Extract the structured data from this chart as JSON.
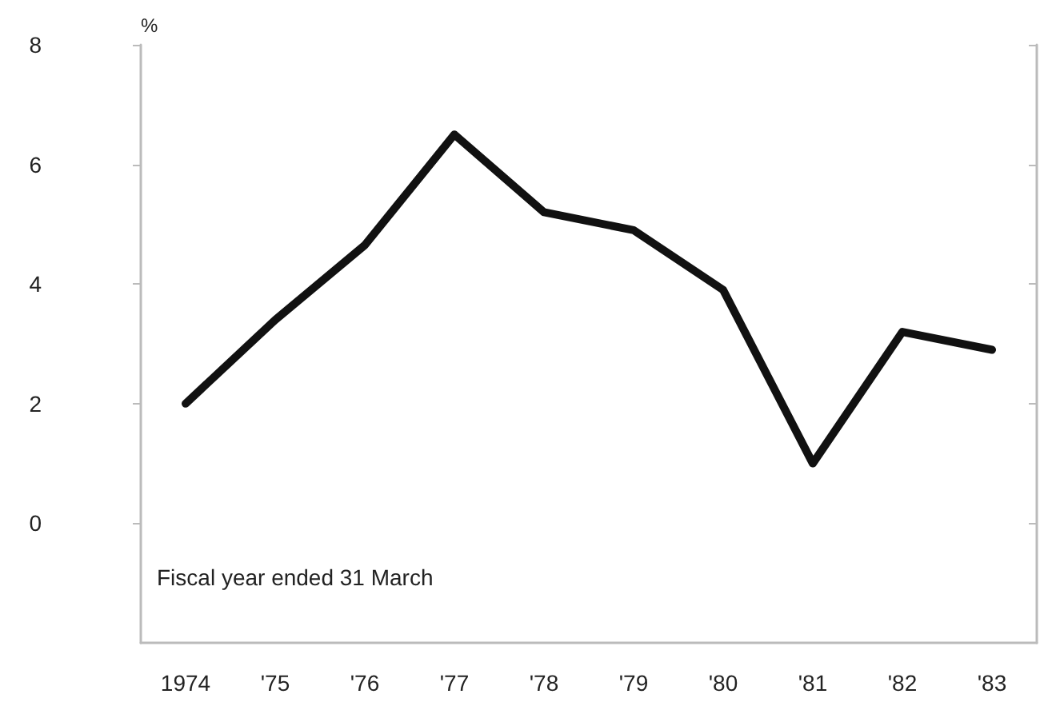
{
  "chart_data": {
    "type": "line",
    "ylabel": "%",
    "categories": [
      "1974",
      "'75",
      "'76",
      "'77",
      "'78",
      "'79",
      "'80",
      "'81",
      "'82",
      "'83"
    ],
    "series": [
      {
        "color": "#111111",
        "values": [
          2.0,
          3.4,
          4.65,
          6.5,
          5.2,
          4.9,
          3.9,
          1.0,
          3.2,
          2.9
        ]
      }
    ],
    "ylim": [
      -2,
      8
    ],
    "yticks": [
      0,
      2,
      4,
      6,
      8
    ],
    "grid": false,
    "marker": "none",
    "line_style": "solid",
    "annotations": [
      "Fiscal year ended 31 March"
    ]
  }
}
